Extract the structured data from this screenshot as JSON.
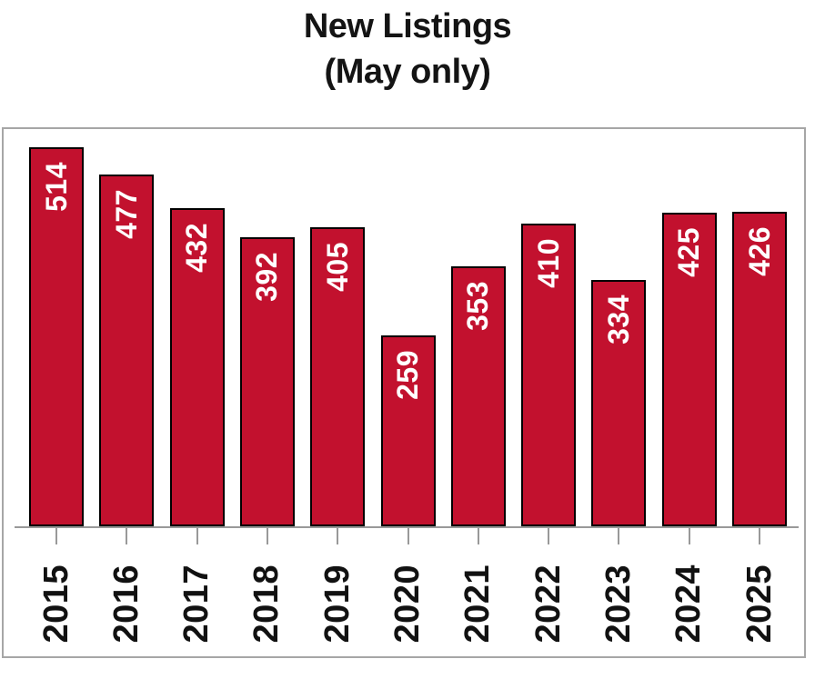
{
  "title": {
    "line1": "New Listings",
    "line2": "(May only)"
  },
  "chart_data": {
    "type": "bar",
    "title": "New Listings (May only)",
    "categories": [
      "2015",
      "2016",
      "2017",
      "2018",
      "2019",
      "2020",
      "2021",
      "2022",
      "2023",
      "2024",
      "2025"
    ],
    "values": [
      514,
      477,
      432,
      392,
      405,
      259,
      353,
      410,
      334,
      425,
      426
    ],
    "xlabel": "",
    "ylabel": "",
    "ylim": [
      0,
      540
    ],
    "grid": false,
    "legend": false,
    "orientation": "vertical",
    "value_labels": "inside bar top, rotated 90° counterclockwise",
    "x_tick_labels": "rotated 90° counterclockwise",
    "colors": {
      "bar_fill": "#c2112e",
      "bar_border": "#000000",
      "value_label": "#ffffff",
      "axis_line": "#999999",
      "tick": "#999999",
      "panel_border": "#a6a6a6",
      "title_text": "#141414",
      "x_label_text": "#111111",
      "background": "#ffffff"
    }
  }
}
